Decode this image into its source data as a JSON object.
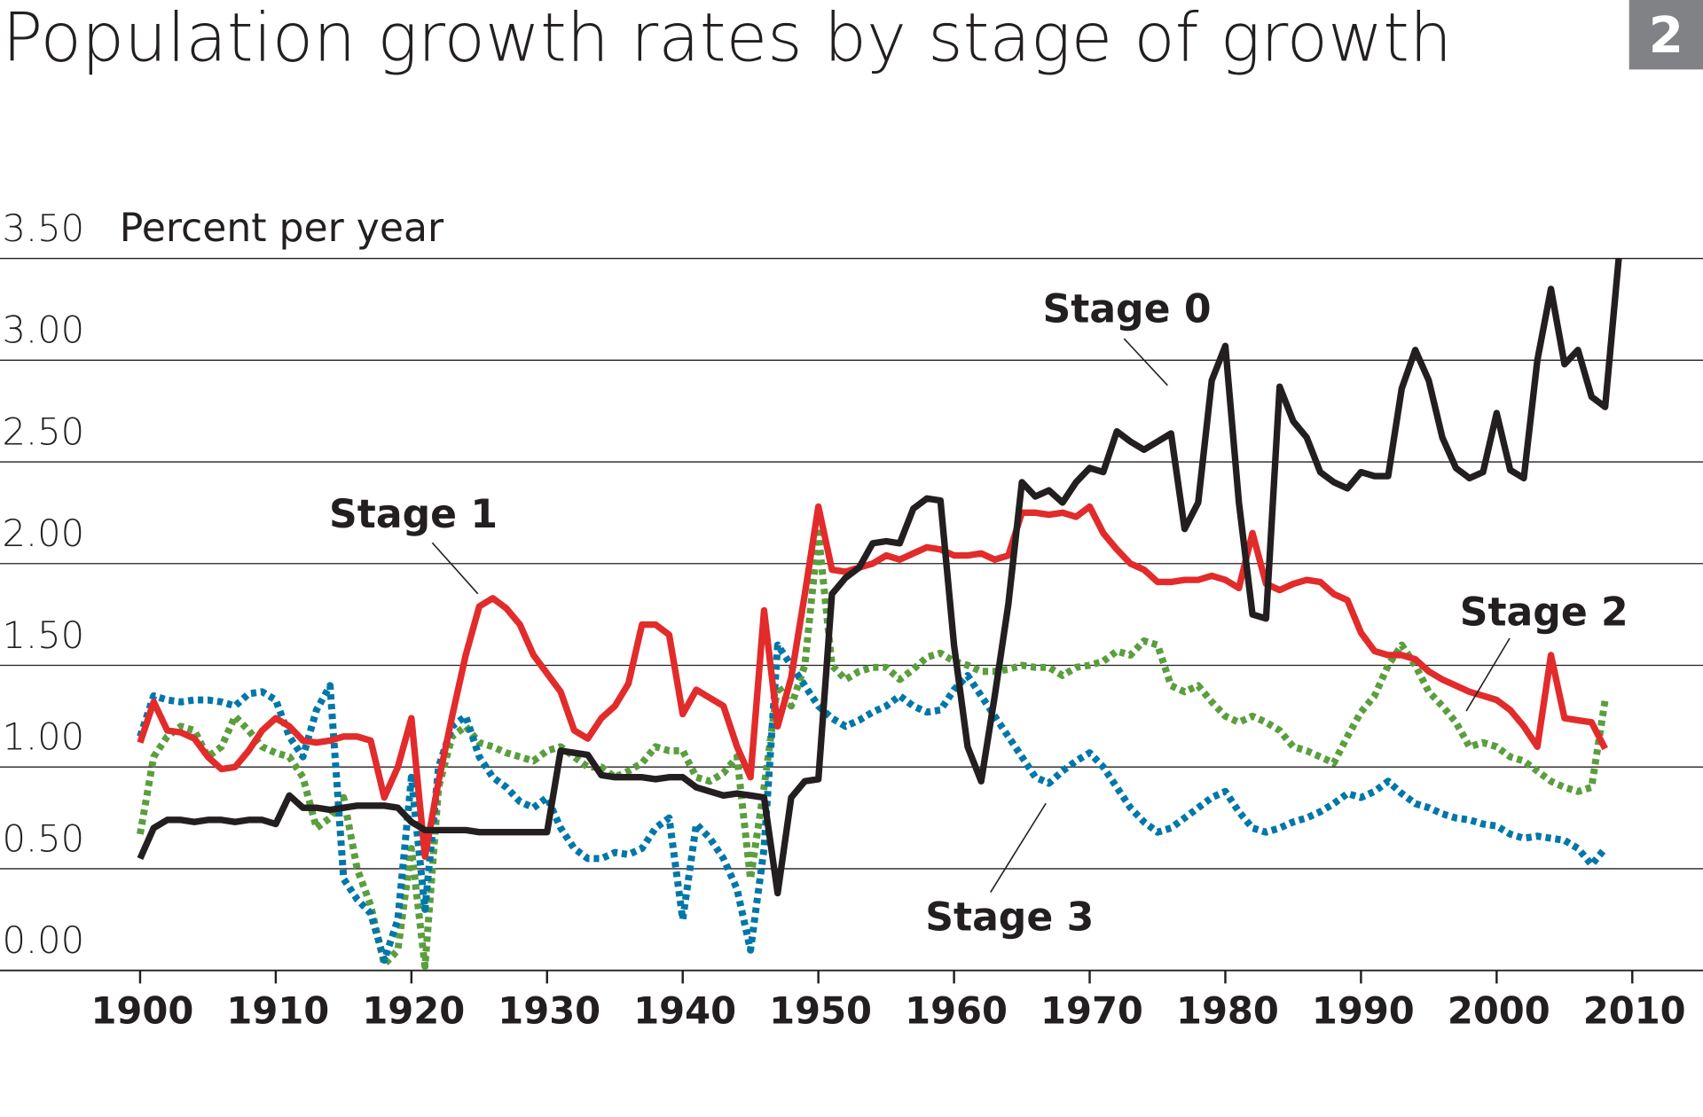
{
  "title": "Population growth rates by stage of growth",
  "badge": "2",
  "chart_data": {
    "type": "line",
    "title": "Population growth rates by stage of growth",
    "ylabel": "Percent per year",
    "xlabel": "",
    "xlim": [
      1900,
      2010
    ],
    "ylim": [
      0,
      3.5
    ],
    "x_ticks": [
      "1900",
      "1910",
      "1920",
      "1930",
      "1940",
      "1950",
      "1960",
      "1970",
      "1980",
      "1990",
      "2000",
      "2010"
    ],
    "y_ticks": [
      "0.00",
      "0.50",
      "1.00",
      "1.50",
      "2.00",
      "2.50",
      "3.00",
      "3.50"
    ],
    "grid": "horizontal",
    "x_start": 1900,
    "series": [
      {
        "name": "Stage 0",
        "color": "#231f20",
        "style": "solid",
        "values": [
          0.55,
          0.7,
          0.74,
          0.74,
          0.73,
          0.74,
          0.74,
          0.73,
          0.74,
          0.74,
          0.72,
          0.86,
          0.8,
          0.8,
          0.79,
          0.8,
          0.81,
          0.81,
          0.81,
          0.8,
          0.73,
          0.69,
          0.69,
          0.69,
          0.69,
          0.68,
          0.68,
          0.68,
          0.68,
          0.68,
          0.68,
          1.08,
          1.07,
          1.06,
          0.96,
          0.95,
          0.95,
          0.95,
          0.94,
          0.95,
          0.95,
          0.9,
          0.88,
          0.86,
          0.87,
          0.86,
          0.85,
          0.38,
          0.85,
          0.93,
          0.94,
          1.85,
          1.93,
          1.98,
          2.1,
          2.11,
          2.1,
          2.27,
          2.32,
          2.31,
          1.6,
          1.1,
          0.93,
          1.35,
          1.8,
          2.4,
          2.33,
          2.36,
          2.3,
          2.4,
          2.47,
          2.45,
          2.65,
          2.6,
          2.56,
          2.6,
          2.64,
          2.17,
          2.3,
          2.9,
          3.07,
          2.3,
          1.75,
          1.73,
          2.87,
          2.7,
          2.62,
          2.45,
          2.4,
          2.37,
          2.45,
          2.43,
          2.43,
          2.86,
          3.05,
          2.9,
          2.62,
          2.47,
          2.42,
          2.45,
          2.74,
          2.46,
          2.42,
          3.0,
          3.35,
          2.98,
          3.05,
          2.82,
          2.77,
          3.5
        ]
      },
      {
        "name": "Stage 1",
        "color": "#e22b2b",
        "style": "solid",
        "values": [
          1.12,
          1.32,
          1.18,
          1.17,
          1.14,
          1.05,
          0.99,
          1.0,
          1.08,
          1.18,
          1.24,
          1.2,
          1.13,
          1.12,
          1.13,
          1.15,
          1.15,
          1.13,
          0.85,
          1.0,
          1.24,
          0.56,
          0.93,
          1.25,
          1.55,
          1.79,
          1.83,
          1.78,
          1.7,
          1.55,
          1.46,
          1.37,
          1.18,
          1.14,
          1.24,
          1.3,
          1.41,
          1.7,
          1.7,
          1.65,
          1.26,
          1.38,
          1.34,
          1.3,
          1.1,
          0.95,
          1.77,
          1.2,
          1.44,
          1.85,
          2.28,
          1.97,
          1.96,
          1.98,
          2.0,
          2.04,
          2.02,
          2.05,
          2.08,
          2.07,
          2.04,
          2.04,
          2.05,
          2.02,
          2.04,
          2.25,
          2.25,
          2.24,
          2.25,
          2.23,
          2.28,
          2.15,
          2.07,
          2.0,
          1.97,
          1.91,
          1.91,
          1.92,
          1.92,
          1.94,
          1.92,
          1.88,
          2.15,
          1.9,
          1.87,
          1.9,
          1.92,
          1.91,
          1.85,
          1.82,
          1.66,
          1.57,
          1.55,
          1.55,
          1.53,
          1.47,
          1.43,
          1.4,
          1.37,
          1.35,
          1.33,
          1.28,
          1.2,
          1.1,
          1.55,
          1.24,
          1.23,
          1.22,
          1.09
        ]
      },
      {
        "name": "Stage 2",
        "color": "#5a9e3e",
        "style": "dotted",
        "values": [
          0.67,
          1.05,
          1.15,
          1.2,
          1.18,
          1.05,
          1.1,
          1.25,
          1.18,
          1.1,
          1.07,
          1.05,
          0.95,
          0.7,
          0.75,
          0.85,
          0.5,
          0.32,
          0.03,
          0.1,
          0.6,
          0.02,
          0.9,
          1.15,
          1.2,
          1.12,
          1.1,
          1.07,
          1.05,
          1.03,
          1.08,
          1.1,
          1.05,
          1.0,
          1.0,
          0.95,
          0.98,
          1.02,
          1.1,
          1.08,
          1.08,
          0.95,
          0.93,
          0.97,
          1.05,
          0.45,
          0.9,
          1.4,
          1.3,
          1.5,
          2.15,
          1.5,
          1.43,
          1.47,
          1.49,
          1.49,
          1.43,
          1.48,
          1.54,
          1.56,
          1.52,
          1.5,
          1.47,
          1.47,
          1.48,
          1.5,
          1.49,
          1.49,
          1.45,
          1.49,
          1.5,
          1.52,
          1.57,
          1.55,
          1.62,
          1.6,
          1.4,
          1.37,
          1.4,
          1.32,
          1.25,
          1.22,
          1.25,
          1.22,
          1.18,
          1.1,
          1.08,
          1.05,
          1.02,
          1.15,
          1.27,
          1.35,
          1.5,
          1.6,
          1.5,
          1.37,
          1.3,
          1.22,
          1.1,
          1.12,
          1.1,
          1.05,
          1.03,
          0.98,
          0.93,
          0.9,
          0.88,
          0.9,
          1.33
        ]
      },
      {
        "name": "Stage 3",
        "color": "#0077a8",
        "style": "dotted",
        "values": [
          1.15,
          1.35,
          1.33,
          1.32,
          1.33,
          1.33,
          1.32,
          1.3,
          1.36,
          1.37,
          1.33,
          1.15,
          1.05,
          1.28,
          1.4,
          0.45,
          0.35,
          0.28,
          0.05,
          0.25,
          0.95,
          0.3,
          1.0,
          1.2,
          1.25,
          1.05,
          0.95,
          0.9,
          0.83,
          0.8,
          0.85,
          0.7,
          0.6,
          0.55,
          0.55,
          0.58,
          0.57,
          0.6,
          0.7,
          0.75,
          0.25,
          0.72,
          0.65,
          0.55,
          0.4,
          0.1,
          0.6,
          1.6,
          1.5,
          1.4,
          1.3,
          1.24,
          1.2,
          1.23,
          1.27,
          1.3,
          1.35,
          1.3,
          1.27,
          1.28,
          1.38,
          1.45,
          1.35,
          1.25,
          1.15,
          1.05,
          0.95,
          0.92,
          0.98,
          1.03,
          1.07,
          1.0,
          0.9,
          0.8,
          0.73,
          0.68,
          0.7,
          0.75,
          0.8,
          0.85,
          0.88,
          0.78,
          0.7,
          0.68,
          0.7,
          0.73,
          0.75,
          0.78,
          0.82,
          0.87,
          0.85,
          0.88,
          0.93,
          0.87,
          0.82,
          0.8,
          0.77,
          0.75,
          0.74,
          0.72,
          0.71,
          0.67,
          0.65,
          0.66,
          0.65,
          0.64,
          0.6,
          0.52,
          0.6
        ]
      }
    ],
    "annotations": [
      "Stage 0",
      "Stage 1",
      "Stage 2",
      "Stage 3"
    ]
  }
}
